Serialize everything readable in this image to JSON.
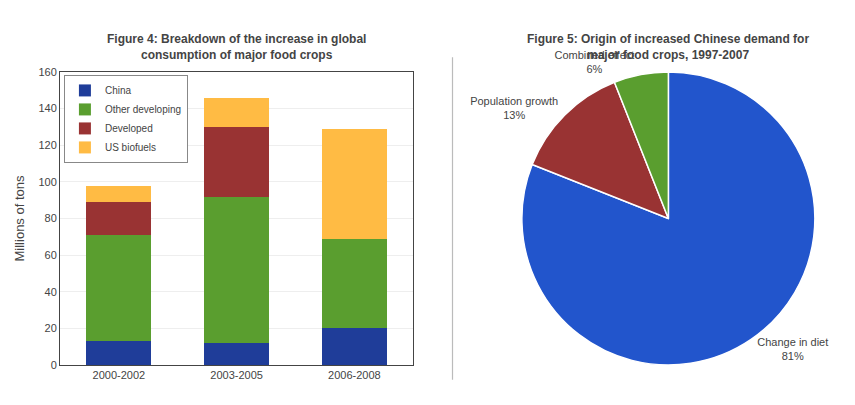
{
  "chart_data": [
    {
      "type": "bar",
      "title": "Figure 4: Breakdown of the increase in global\nconsumption of major food crops",
      "categories": [
        "2000-2002",
        "2003-2005",
        "2006-2008"
      ],
      "series": [
        {
          "name": "China",
          "color": "#1f3d99",
          "values": [
            13,
            12,
            20
          ]
        },
        {
          "name": "Other developing",
          "color": "#5a9e2f",
          "values": [
            58,
            80,
            49
          ]
        },
        {
          "name": "Developed",
          "color": "#993333",
          "values": [
            18,
            38,
            0
          ]
        },
        {
          "name": "US biofuels",
          "color": "#ffbb44",
          "values": [
            9,
            16,
            60
          ]
        }
      ],
      "ylabel": "Millions of tons",
      "ylim": [
        0,
        160
      ],
      "yticks": [
        0,
        20,
        40,
        60,
        80,
        100,
        120,
        140,
        160
      ],
      "grid": true,
      "stacked": true,
      "legend": "upper left"
    },
    {
      "type": "pie",
      "title": "Figure 5: Origin of increased Chinese demand for\nmajor food crops, 1997-2007",
      "categories": [
        "Change in diet",
        "Population growth",
        "Combined effect"
      ],
      "values": [
        81,
        13,
        6
      ],
      "value_labels": [
        "81%",
        "13%",
        "6%"
      ],
      "colors": [
        "#2255cc",
        "#993333",
        "#5a9e2f"
      ]
    }
  ]
}
